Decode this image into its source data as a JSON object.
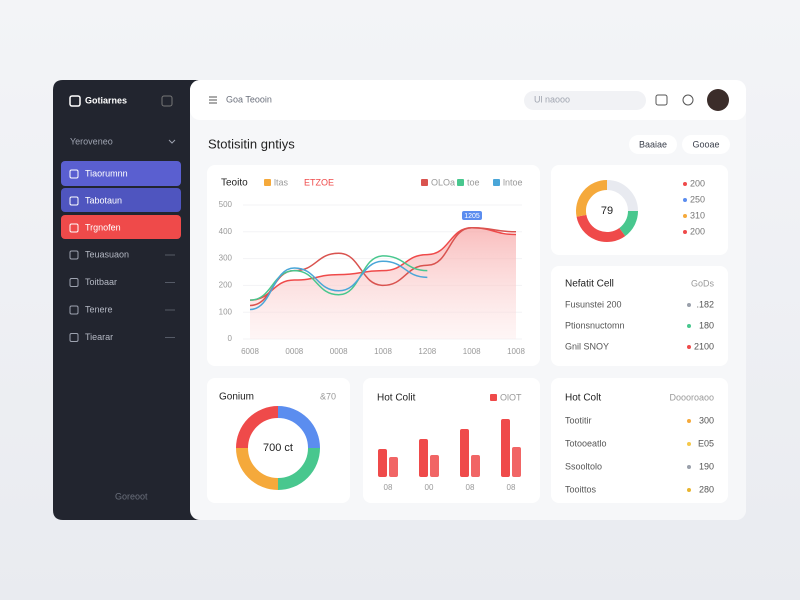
{
  "sidebar": {
    "brand": "Gotiarnes",
    "workspace": "Yeroveneo",
    "menu": [
      "Tiaorumnn",
      "Tabotaun",
      "Trgnofen",
      "Teuasuaon",
      "Toitbaar",
      "Tenere",
      "Tiearar"
    ],
    "footer": "Goreoot"
  },
  "topbar": {
    "breadcrumb": "Goa Teooin",
    "search": "Ul naooo"
  },
  "page_title": "Stotisitin gntiys",
  "buttons": [
    "Baaiae",
    "Gooae"
  ],
  "line_chart": {
    "type": "line",
    "title": "Teoito",
    "tag": {
      "name": "ltas",
      "color": "#f5a93b"
    },
    "categories": [
      "6008",
      "0008",
      "0008",
      "1008",
      "1208",
      "1008",
      "1008"
    ],
    "series": [
      {
        "name": "ETZOE",
        "color": "#ef4a4a",
        "fill": true,
        "values": [
          145,
          220,
          240,
          255,
          315,
          415,
          390
        ]
      },
      {
        "name": "OLOa",
        "color": "#d9534f",
        "values": [
          125,
          255,
          320,
          200,
          275,
          415,
          400
        ]
      },
      {
        "name": "toe",
        "color": "#48c78e",
        "values": [
          145,
          255,
          165,
          310,
          255,
          null,
          null
        ]
      },
      {
        "name": "lntoe",
        "color": "#4aa6d8",
        "values": [
          110,
          265,
          180,
          290,
          230,
          null,
          null
        ]
      }
    ],
    "ylim": [
      0,
      500
    ],
    "yticks": [
      0,
      100,
      200,
      300,
      400,
      500
    ],
    "annotation": "1205"
  },
  "donut_small": {
    "type": "pie",
    "center_label": "79",
    "segments": [
      {
        "value": 25,
        "color": "#e8eaf0"
      },
      {
        "value": 15,
        "color": "#48c78e"
      },
      {
        "value": 32,
        "color": "#ef4a4a"
      },
      {
        "value": 28,
        "color": "#f5a93b"
      }
    ],
    "legend": [
      {
        "label": "200",
        "color": "#ef4a4a"
      },
      {
        "label": "250",
        "color": "#5b8def"
      },
      {
        "label": "310",
        "color": "#f5a93b"
      },
      {
        "label": "200",
        "color": "#ef4a4a"
      }
    ]
  },
  "list_top": {
    "title": "Nefatit Cell",
    "action": "GoDs",
    "rows": [
      {
        "label": "Fusunstei 200",
        "value": ".182",
        "color": "#9aa0ab"
      },
      {
        "label": "Ptionsnuctomn",
        "value": "180",
        "color": "#48c78e"
      },
      {
        "label": "Gnil SNOY",
        "value": "2100",
        "color": "#ef4a4a"
      }
    ]
  },
  "donut_large": {
    "type": "pie",
    "title": "Gonium",
    "action": "&70",
    "center_label": "700 ct",
    "segments": [
      {
        "value": 25,
        "color": "#5b8def"
      },
      {
        "value": 25,
        "color": "#48c78e"
      },
      {
        "value": 25,
        "color": "#f5a93b"
      },
      {
        "value": 25,
        "color": "#ef4a4a"
      }
    ]
  },
  "bar_chart": {
    "type": "bar",
    "title": "Hot Colit",
    "legend": "OlOT",
    "color": "#ef4a4a",
    "categories": [
      "08",
      "00",
      "08",
      "08"
    ],
    "series": [
      {
        "values": [
          28,
          38,
          48,
          58
        ]
      },
      {
        "values": [
          20,
          22,
          22,
          30
        ]
      }
    ]
  },
  "list_bottom": {
    "title": "Hot Colt",
    "action": "Doooroaoo",
    "rows": [
      {
        "label": "Tootitir",
        "value": "300",
        "color": "#f5a93b"
      },
      {
        "label": "Totooeatlo",
        "value": "E05",
        "color": "#f5c84a"
      },
      {
        "label": "Ssooltolo",
        "value": "190",
        "color": "#9aa0ab"
      },
      {
        "label": "Tooittos",
        "value": "280",
        "color": "#e8b530"
      }
    ]
  }
}
